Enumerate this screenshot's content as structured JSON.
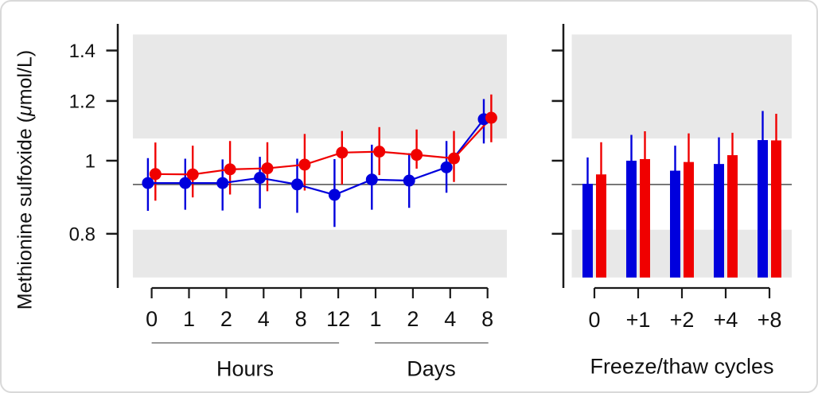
{
  "figure": {
    "ylabel": {
      "prefix": "Methionine sulfoxide (",
      "mu": "μ",
      "suffix": "mol/L)",
      "full": "Methionine sulfoxide (μmol/L)"
    },
    "colors": {
      "series_blue": "#0000DD",
      "series_red": "#F00000",
      "shaded_band": "#E8E8E8",
      "reference_line": "#666666",
      "axis": "#1A1A1A",
      "group_underline": "#999999",
      "text": "#111111"
    }
  },
  "chart_data": [
    {
      "type": "line",
      "panel": "storage-time",
      "ylabel": "Methionine sulfoxide (μmol/L)",
      "yscale": "log",
      "ylim": [
        0.7,
        1.47
      ],
      "ytick_labels": [
        "1.4",
        "1.2",
        "1",
        "0.8"
      ],
      "ytick_values": [
        1.4,
        1.2,
        1.0,
        0.8
      ],
      "reference_value": 0.93,
      "band_limits": [
        0.81,
        1.07
      ],
      "grid": false,
      "legend": "none",
      "x_tick_labels": [
        "0",
        "1",
        "2",
        "4",
        "8",
        "12",
        "1",
        "2",
        "4",
        "8"
      ],
      "x_groups": [
        {
          "label": "Hours",
          "ticks": [
            "0",
            "1",
            "2",
            "4",
            "8",
            "12"
          ]
        },
        {
          "label": "Days",
          "ticks": [
            "1",
            "2",
            "4",
            "8"
          ]
        }
      ],
      "series": [
        {
          "name": "blue",
          "color": "#0000DD",
          "values": [
            0.934,
            0.934,
            0.934,
            0.949,
            0.93,
            0.901,
            0.944,
            0.941,
            0.98,
            1.135
          ],
          "err_lo": [
            0.858,
            0.861,
            0.859,
            0.864,
            0.853,
            0.817,
            0.861,
            0.866,
            0.907,
            1.054
          ],
          "err_hi": [
            1.008,
            1.006,
            1.004,
            1.012,
            1.006,
            1.005,
            1.05,
            1.023,
            1.062,
            1.207
          ]
        },
        {
          "name": "red",
          "color": "#F00000",
          "values": [
            0.96,
            0.959,
            0.974,
            0.977,
            0.988,
            1.025,
            1.028,
            1.018,
            1.007,
            1.14
          ],
          "err_lo": [
            0.885,
            0.894,
            0.902,
            0.911,
            0.913,
            0.93,
            0.957,
            0.976,
            0.937,
            1.058
          ],
          "err_hi": [
            1.057,
            1.047,
            1.062,
            1.058,
            1.085,
            1.095,
            1.108,
            1.1,
            1.095,
            1.224
          ]
        }
      ]
    },
    {
      "type": "bar",
      "panel": "freeze-thaw",
      "xlabel": "Freeze/thaw cycles",
      "yscale": "log",
      "ylim": [
        0.7,
        1.47
      ],
      "ytick_values": [
        1.4,
        1.2,
        1.0,
        0.8
      ],
      "reference_value": 0.93,
      "band_limits": [
        0.81,
        1.07
      ],
      "grid": false,
      "legend": "none",
      "categories": [
        "0",
        "+1",
        "+2",
        "+4",
        "+8"
      ],
      "series": [
        {
          "name": "blue",
          "color": "#0000DD",
          "values": [
            0.932,
            1.0,
            0.97,
            0.99,
            1.065
          ],
          "err_hi": [
            1.01,
            1.082,
            1.047,
            1.074,
            1.164
          ]
        },
        {
          "name": "red",
          "color": "#F00000",
          "values": [
            0.959,
            1.005,
            0.996,
            1.017,
            1.064
          ],
          "err_hi": [
            1.058,
            1.094,
            1.087,
            1.089,
            1.154
          ]
        }
      ]
    }
  ]
}
